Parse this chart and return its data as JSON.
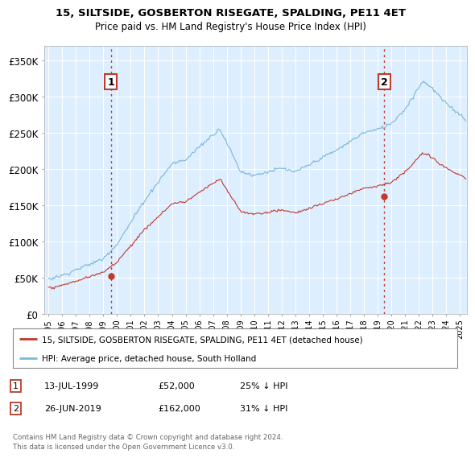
{
  "title": "15, SILTSIDE, GOSBERTON RISEGATE, SPALDING, PE11 4ET",
  "subtitle": "Price paid vs. HM Land Registry's House Price Index (HPI)",
  "xlim": [
    1994.7,
    2025.5
  ],
  "ylim": [
    0,
    370000
  ],
  "yticks": [
    0,
    50000,
    100000,
    150000,
    200000,
    250000,
    300000,
    350000
  ],
  "ytick_labels": [
    "£0",
    "£50K",
    "£100K",
    "£150K",
    "£200K",
    "£250K",
    "£300K",
    "£350K"
  ],
  "sale1_x": 1999.54,
  "sale1_y": 52000,
  "sale2_x": 2019.48,
  "sale2_y": 162000,
  "hpi_color": "#7ab8d9",
  "price_color": "#c0392b",
  "vline_color": "#c0392b",
  "plot_bg_color": "#ddeeff",
  "grid_color": "#ffffff",
  "legend1_text": "15, SILTSIDE, GOSBERTON RISEGATE, SPALDING, PE11 4ET (detached house)",
  "legend2_text": "HPI: Average price, detached house, South Holland",
  "footnote": "Contains HM Land Registry data © Crown copyright and database right 2024.\nThis data is licensed under the Open Government Licence v3.0.",
  "background_color": "#ffffff"
}
